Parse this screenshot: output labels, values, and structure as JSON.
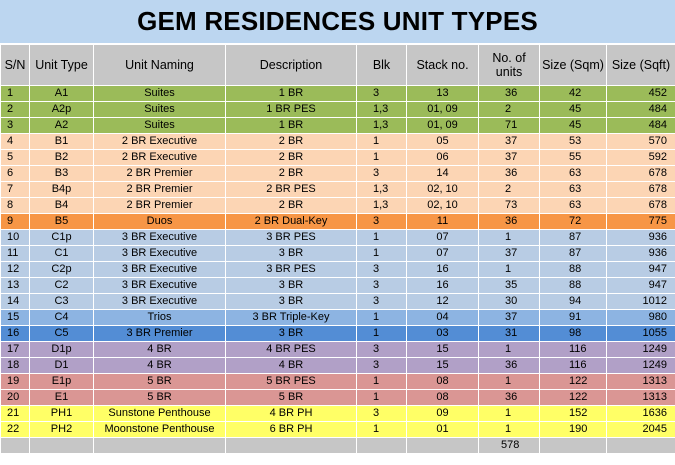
{
  "title": "GEM RESIDENCES UNIT TYPES",
  "colors": {
    "green": "#9bbb59",
    "peach": "#fcd5b4",
    "orange": "#f79646",
    "lightblue": "#b8cce4",
    "blue": "#8db4e2",
    "darkblue": "#538dd5",
    "purple": "#b1a0c7",
    "red": "#da9694",
    "yellow": "#ffff66",
    "header_gray": "#c6c6c6"
  },
  "headers": [
    "S/N",
    "Unit Type",
    "Unit Naming",
    "Description",
    "Blk",
    "Stack no.",
    "No. of units",
    "Size (Sqm)",
    "Size (Sqft)"
  ],
  "rows": [
    {
      "sn": "1",
      "type": "A1",
      "naming": "Suites",
      "desc": "1 BR",
      "blk": "3",
      "stack": "13",
      "units": "36",
      "sqm": "42",
      "sqft": "452",
      "color": "green"
    },
    {
      "sn": "2",
      "type": "A2p",
      "naming": "Suites",
      "desc": "1 BR PES",
      "blk": "1,3",
      "stack": "01, 09",
      "units": "2",
      "sqm": "45",
      "sqft": "484",
      "color": "green"
    },
    {
      "sn": "3",
      "type": "A2",
      "naming": "Suites",
      "desc": "1 BR",
      "blk": "1,3",
      "stack": "01, 09",
      "units": "71",
      "sqm": "45",
      "sqft": "484",
      "color": "green"
    },
    {
      "sn": "4",
      "type": "B1",
      "naming": "2 BR Executive",
      "desc": "2 BR",
      "blk": "1",
      "stack": "05",
      "units": "37",
      "sqm": "53",
      "sqft": "570",
      "color": "peach"
    },
    {
      "sn": "5",
      "type": "B2",
      "naming": "2 BR Executive",
      "desc": "2 BR",
      "blk": "1",
      "stack": "06",
      "units": "37",
      "sqm": "55",
      "sqft": "592",
      "color": "peach"
    },
    {
      "sn": "6",
      "type": "B3",
      "naming": "2 BR Premier",
      "desc": "2 BR",
      "blk": "3",
      "stack": "14",
      "units": "36",
      "sqm": "63",
      "sqft": "678",
      "color": "peach"
    },
    {
      "sn": "7",
      "type": "B4p",
      "naming": "2 BR Premier",
      "desc": "2 BR PES",
      "blk": "1,3",
      "stack": "02, 10",
      "units": "2",
      "sqm": "63",
      "sqft": "678",
      "color": "peach"
    },
    {
      "sn": "8",
      "type": "B4",
      "naming": "2 BR Premier",
      "desc": "2 BR",
      "blk": "1,3",
      "stack": "02, 10",
      "units": "73",
      "sqm": "63",
      "sqft": "678",
      "color": "peach"
    },
    {
      "sn": "9",
      "type": "B5",
      "naming": "Duos",
      "desc": "2 BR Dual-Key",
      "blk": "3",
      "stack": "11",
      "units": "36",
      "sqm": "72",
      "sqft": "775",
      "color": "orange"
    },
    {
      "sn": "10",
      "type": "C1p",
      "naming": "3 BR Executive",
      "desc": "3 BR PES",
      "blk": "1",
      "stack": "07",
      "units": "1",
      "sqm": "87",
      "sqft": "936",
      "color": "lightblue"
    },
    {
      "sn": "11",
      "type": "C1",
      "naming": "3 BR Executive",
      "desc": "3 BR",
      "blk": "1",
      "stack": "07",
      "units": "37",
      "sqm": "87",
      "sqft": "936",
      "color": "lightblue"
    },
    {
      "sn": "12",
      "type": "C2p",
      "naming": "3 BR Executive",
      "desc": "3 BR PES",
      "blk": "3",
      "stack": "16",
      "units": "1",
      "sqm": "88",
      "sqft": "947",
      "color": "lightblue"
    },
    {
      "sn": "13",
      "type": "C2",
      "naming": "3 BR Executive",
      "desc": "3 BR",
      "blk": "3",
      "stack": "16",
      "units": "35",
      "sqm": "88",
      "sqft": "947",
      "color": "lightblue"
    },
    {
      "sn": "14",
      "type": "C3",
      "naming": "3 BR Executive",
      "desc": "3 BR",
      "blk": "3",
      "stack": "12",
      "units": "30",
      "sqm": "94",
      "sqft": "1012",
      "color": "lightblue"
    },
    {
      "sn": "15",
      "type": "C4",
      "naming": "Trios",
      "desc": "3 BR Triple-Key",
      "blk": "1",
      "stack": "04",
      "units": "37",
      "sqm": "91",
      "sqft": "980",
      "color": "blue"
    },
    {
      "sn": "16",
      "type": "C5",
      "naming": "3 BR Premier",
      "desc": "3 BR",
      "blk": "1",
      "stack": "03",
      "units": "31",
      "sqm": "98",
      "sqft": "1055",
      "color": "darkblue"
    },
    {
      "sn": "17",
      "type": "D1p",
      "naming": "4 BR",
      "desc": "4 BR PES",
      "blk": "3",
      "stack": "15",
      "units": "1",
      "sqm": "116",
      "sqft": "1249",
      "color": "purple"
    },
    {
      "sn": "18",
      "type": "D1",
      "naming": "4 BR",
      "desc": "4 BR",
      "blk": "3",
      "stack": "15",
      "units": "36",
      "sqm": "116",
      "sqft": "1249",
      "color": "purple"
    },
    {
      "sn": "19",
      "type": "E1p",
      "naming": "5 BR",
      "desc": "5 BR PES",
      "blk": "1",
      "stack": "08",
      "units": "1",
      "sqm": "122",
      "sqft": "1313",
      "color": "red"
    },
    {
      "sn": "20",
      "type": "E1",
      "naming": "5 BR",
      "desc": "5 BR",
      "blk": "1",
      "stack": "08",
      "units": "36",
      "sqm": "122",
      "sqft": "1313",
      "color": "red"
    },
    {
      "sn": "21",
      "type": "PH1",
      "naming": "Sunstone Penthouse",
      "desc": "4 BR PH",
      "blk": "3",
      "stack": "09",
      "units": "1",
      "sqm": "152",
      "sqft": "1636",
      "color": "yellow"
    },
    {
      "sn": "22",
      "type": "PH2",
      "naming": "Moonstone Penthouse",
      "desc": "6 BR PH",
      "blk": "1",
      "stack": "01",
      "units": "1",
      "sqm": "190",
      "sqft": "2045",
      "color": "yellow"
    }
  ],
  "total_units": "578"
}
